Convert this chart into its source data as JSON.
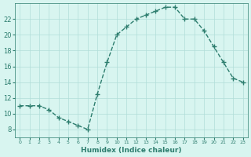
{
  "x": [
    0,
    1,
    2,
    3,
    4,
    5,
    6,
    7,
    8,
    9,
    10,
    11,
    12,
    13,
    14,
    15,
    16,
    17,
    18,
    19,
    20,
    21,
    22,
    23
  ],
  "y": [
    11,
    11,
    11,
    10.5,
    9.5,
    9,
    8.5,
    8,
    12.5,
    16.5,
    20,
    21,
    22,
    22.5,
    23,
    23.5,
    23.5,
    22,
    22,
    20.5,
    18.5,
    16.5,
    14.5,
    14
  ],
  "xlabel": "Humidex (Indice chaleur)",
  "line_color": "#2d7d6e",
  "bg_color": "#d8f5f0",
  "grid_color": "#b0ddd8",
  "tick_color": "#2d7d6e",
  "ylim": [
    7,
    24
  ],
  "yticks": [
    8,
    10,
    12,
    14,
    16,
    18,
    20,
    22
  ],
  "xlim": [
    -0.5,
    23.5
  ]
}
